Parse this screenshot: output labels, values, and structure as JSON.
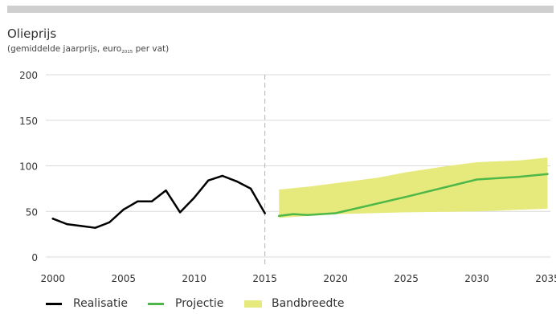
{
  "header": {
    "title": "Olieprijs",
    "subtitle_pre": "(gemiddelde jaarprijs,  euro",
    "subtitle_sub": "2015",
    "subtitle_post": " per vat)"
  },
  "colors": {
    "realisatie": "#000000",
    "projectie": "#4db848",
    "band": "#e6ea7c",
    "grid": "#d9d9d9",
    "marker": "#b3b3b3",
    "topbar": "#cfcfcf"
  },
  "chart_data": {
    "type": "line",
    "title": "Olieprijs",
    "subtitle": "(gemiddelde jaarprijs,  euro2015 per vat)",
    "xlabel": "",
    "ylabel": "",
    "xlim": [
      1999.5,
      2035.2
    ],
    "ylim": [
      0,
      200
    ],
    "yticks": [
      0,
      50,
      100,
      150,
      200
    ],
    "xticks": [
      2000,
      2005,
      2010,
      2015,
      2020,
      2025,
      2030,
      2035
    ],
    "grid": true,
    "legend_position": "bottom",
    "vertical_marker_x": 2015,
    "series": [
      {
        "name": "Realisatie",
        "type": "line",
        "color": "#000000",
        "points": [
          [
            2000,
            42
          ],
          [
            2001,
            36
          ],
          [
            2002,
            34
          ],
          [
            2003,
            32
          ],
          [
            2004,
            38
          ],
          [
            2005,
            52
          ],
          [
            2006,
            61
          ],
          [
            2007,
            61
          ],
          [
            2008,
            73
          ],
          [
            2009,
            49
          ],
          [
            2010,
            65
          ],
          [
            2011,
            84
          ],
          [
            2012,
            89
          ],
          [
            2013,
            83
          ],
          [
            2014,
            75
          ],
          [
            2015,
            48
          ]
        ]
      },
      {
        "name": "Projectie",
        "type": "line",
        "color": "#4db848",
        "points": [
          [
            2016,
            45
          ],
          [
            2017,
            47
          ],
          [
            2018,
            46
          ],
          [
            2020,
            48
          ],
          [
            2025,
            66
          ],
          [
            2030,
            85
          ],
          [
            2032,
            87
          ],
          [
            2033,
            88
          ],
          [
            2035,
            91
          ]
        ]
      },
      {
        "name": "Bandbreedte",
        "type": "area",
        "color": "#e6ea7c",
        "upper": [
          [
            2016,
            74
          ],
          [
            2018,
            77
          ],
          [
            2020,
            81
          ],
          [
            2023,
            87
          ],
          [
            2025,
            93
          ],
          [
            2028,
            100
          ],
          [
            2030,
            104
          ],
          [
            2033,
            106
          ],
          [
            2035,
            109
          ]
        ],
        "lower": [
          [
            2016,
            43
          ],
          [
            2020,
            47
          ],
          [
            2025,
            49
          ],
          [
            2030,
            50
          ],
          [
            2035,
            53
          ]
        ]
      }
    ]
  },
  "legend": {
    "realisatie": "Realisatie",
    "projectie": "Projectie",
    "bandbreedte": "Bandbreedte"
  }
}
